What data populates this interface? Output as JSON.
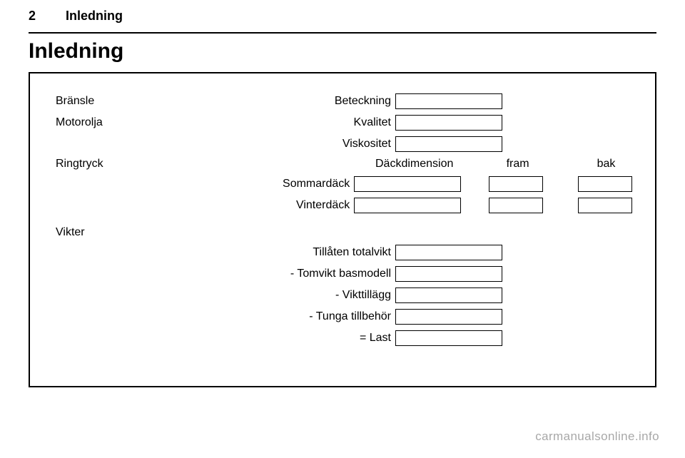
{
  "header": {
    "page_number": "2",
    "section": "Inledning",
    "title": "Inledning"
  },
  "form": {
    "fuel": {
      "category": "Bränsle",
      "label": "Beteckning",
      "value": ""
    },
    "oil": {
      "category": "Motorolja",
      "quality_label": "Kvalitet",
      "quality_value": "",
      "viscosity_label": "Viskositet",
      "viscosity_value": ""
    },
    "tire": {
      "category": "Ringtryck",
      "dimension_header": "Däckdimension",
      "front_header": "fram",
      "rear_header": "bak",
      "summer_label": "Sommardäck",
      "summer_dim": "",
      "summer_front": "",
      "summer_rear": "",
      "winter_label": "Vinterdäck",
      "winter_dim": "",
      "winter_front": "",
      "winter_rear": ""
    },
    "weights": {
      "category": "Vikter",
      "total_label": "Tillåten totalvikt",
      "total_value": "",
      "empty_label": "- Tomvikt basmodell",
      "empty_value": "",
      "addon_label": "- Vikttillägg",
      "addon_value": "",
      "heavy_label": "- Tunga tillbehör",
      "heavy_value": "",
      "load_label": "= Last",
      "load_value": ""
    }
  },
  "watermark": "carmanualsonline.info",
  "style": {
    "border_color": "#000000",
    "background": "#ffffff",
    "watermark_color": "rgba(0,0,0,0.35)"
  }
}
